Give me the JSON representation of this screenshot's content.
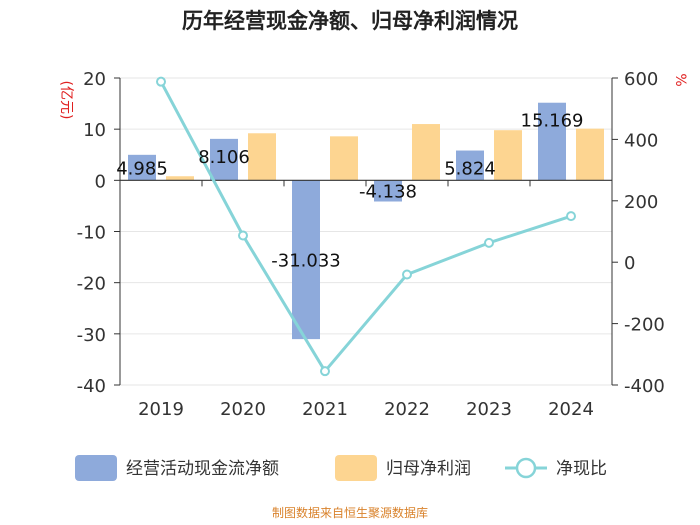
{
  "chart_data": {
    "type": "bar",
    "title": "历年经营现金净额、归母净利润情况",
    "categories": [
      "2019",
      "2020",
      "2021",
      "2022",
      "2023",
      "2024"
    ],
    "series": [
      {
        "name": "经营活动现金流净额",
        "type": "bar",
        "axis": "left",
        "color": "#8eaadb",
        "values": [
          4.985,
          8.106,
          -31.033,
          -4.138,
          5.824,
          15.169
        ],
        "labels": [
          "4.985",
          "8.106",
          "-31.033",
          "-4.138",
          "5.824",
          "15.169"
        ]
      },
      {
        "name": "归母净利润",
        "type": "bar",
        "axis": "left",
        "color": "#fdd591",
        "values": [
          0.8,
          9.2,
          8.6,
          11.0,
          9.8,
          10.1
        ]
      },
      {
        "name": "净现比",
        "type": "line",
        "axis": "right",
        "color": "#86d4d8",
        "values": [
          588,
          87,
          -355,
          -40,
          63,
          150
        ]
      }
    ],
    "left_axis": {
      "label": "(亿元)",
      "min": -40,
      "max": 20,
      "ticks": [
        20,
        10,
        0,
        -10,
        -20,
        -30,
        -40
      ]
    },
    "right_axis": {
      "label": "%",
      "min": -400,
      "max": 600,
      "ticks": [
        600,
        400,
        200,
        0,
        -200,
        -400
      ]
    },
    "legend_position": "bottom",
    "source_text": "制图数据来自恒生聚源数据库",
    "colors": {
      "unit_label": "#e02020",
      "source": "#d9822b",
      "axis": "#333333",
      "grid": "#e6e6e6"
    }
  }
}
